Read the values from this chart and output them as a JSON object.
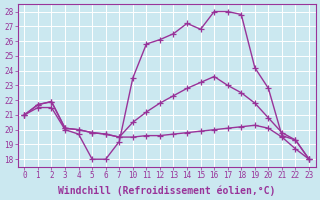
{
  "xlabel": "Windchill (Refroidissement éolien,°C)",
  "bg_color": "#cbe8f0",
  "line_color": "#993399",
  "grid_color": "#ffffff",
  "x_labels": [
    "0",
    "1",
    "2",
    "3",
    "4",
    "5",
    "6",
    "7",
    "10",
    "11",
    "12",
    "13",
    "14",
    "15",
    "16",
    "17",
    "18",
    "19",
    "20",
    "21",
    "22",
    "23"
  ],
  "series": [
    {
      "x": [
        0,
        1,
        2,
        3,
        4,
        5,
        6,
        7,
        8,
        9,
        10,
        11,
        12,
        13,
        14,
        15,
        16,
        17,
        18,
        19,
        20,
        21
      ],
      "y": [
        21.0,
        21.5,
        21.5,
        20.0,
        19.7,
        18.0,
        18.0,
        19.2,
        23.5,
        25.8,
        26.1,
        26.5,
        27.2,
        26.8,
        28.0,
        28.0,
        27.8,
        24.2,
        22.8,
        19.6,
        19.3,
        18.0
      ]
    },
    {
      "x": [
        0,
        1,
        2,
        3,
        4,
        5,
        6,
        7,
        8,
        9,
        10,
        11,
        12,
        13,
        14,
        15,
        16,
        17,
        18,
        19,
        20,
        21
      ],
      "y": [
        21.0,
        21.7,
        21.9,
        20.1,
        20.0,
        19.8,
        19.7,
        19.5,
        19.5,
        19.6,
        19.6,
        19.7,
        19.8,
        19.9,
        20.0,
        20.1,
        20.2,
        20.3,
        20.1,
        19.5,
        18.7,
        18.0
      ]
    },
    {
      "x": [
        0,
        1,
        2,
        3,
        4,
        5,
        6,
        7,
        8,
        9,
        10,
        11,
        12,
        13,
        14,
        15,
        16,
        17,
        18,
        19,
        20,
        21
      ],
      "y": [
        21.0,
        21.7,
        21.9,
        20.1,
        20.0,
        19.8,
        19.7,
        19.5,
        20.5,
        21.2,
        21.8,
        22.3,
        22.8,
        23.2,
        23.6,
        23.0,
        22.5,
        21.8,
        20.8,
        19.8,
        19.3,
        18.0
      ]
    }
  ],
  "ylim": [
    17.5,
    28.5
  ],
  "yticks": [
    18,
    19,
    20,
    21,
    22,
    23,
    24,
    25,
    26,
    27,
    28
  ],
  "xlim": [
    -0.5,
    21.5
  ],
  "marker": "+",
  "markersize": 4,
  "linewidth": 1.0,
  "font_size": 7
}
